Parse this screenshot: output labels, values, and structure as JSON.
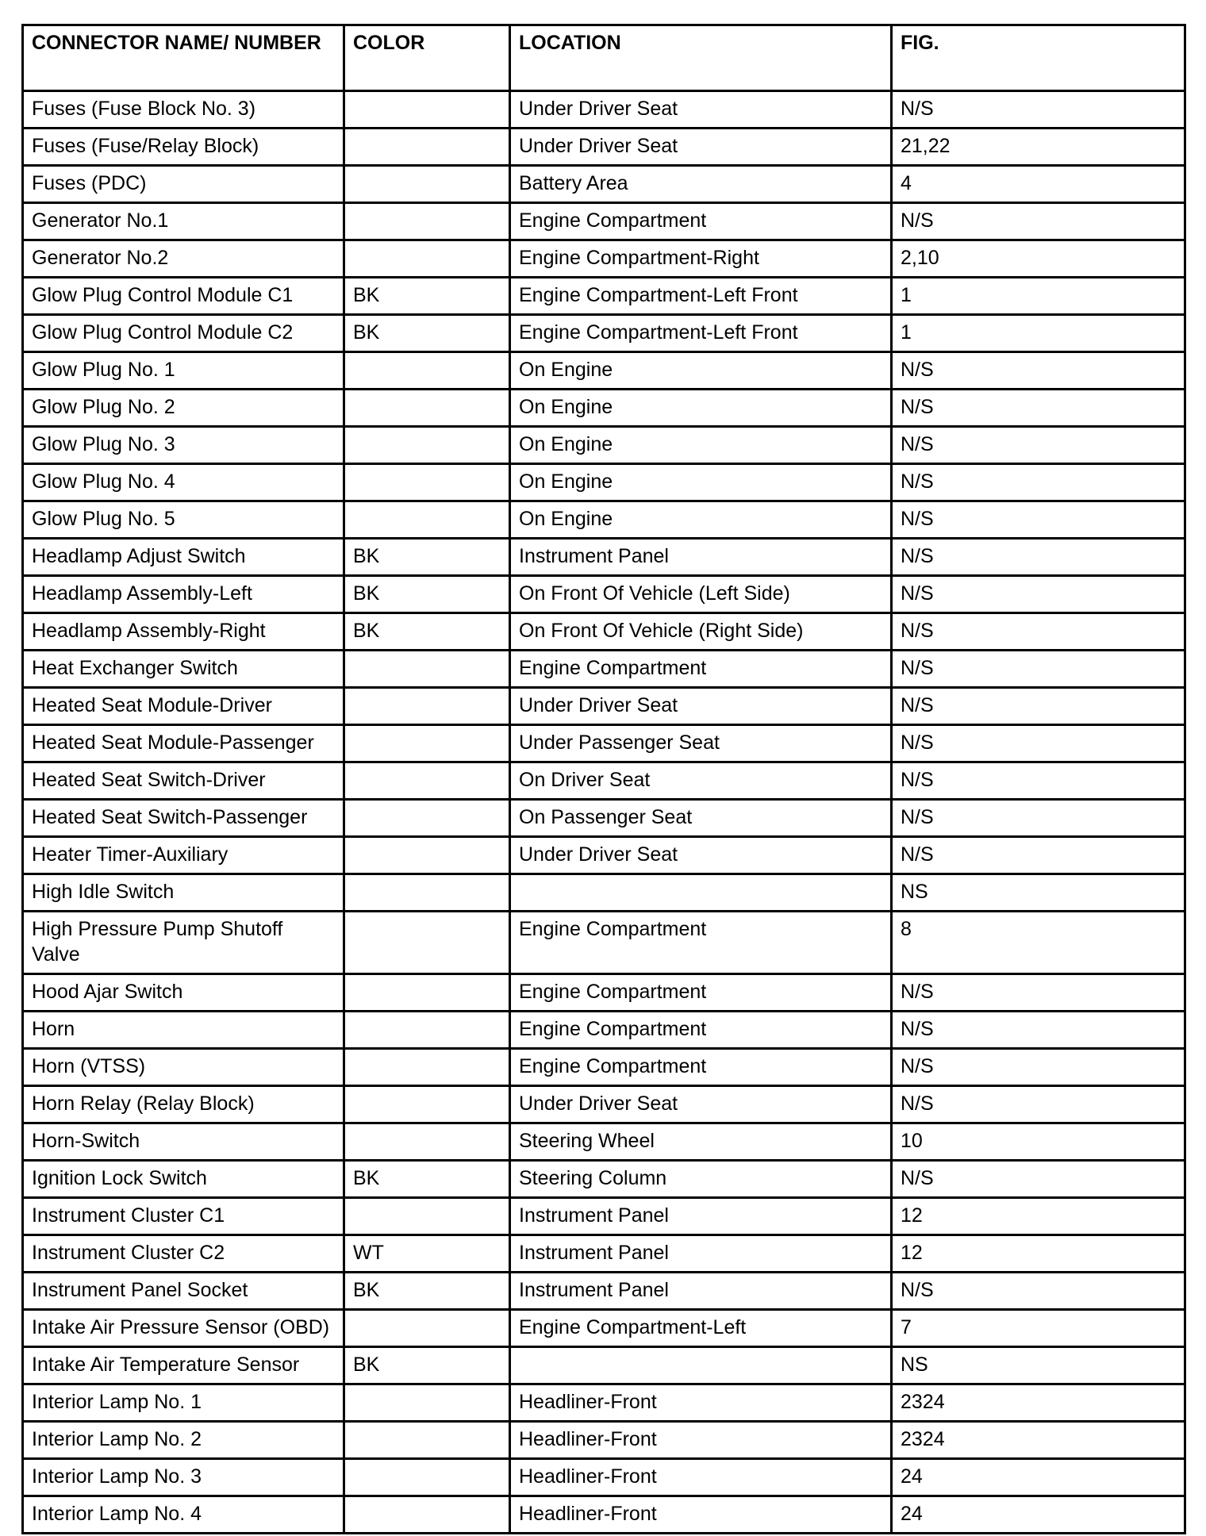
{
  "table": {
    "header": [
      "CONNECTOR NAME/ NUMBER",
      "COLOR",
      "LOCATION",
      "FIG."
    ],
    "rows": [
      [
        "Fuses (Fuse Block No. 3)",
        "",
        "Under Driver Seat",
        "N/S"
      ],
      [
        "Fuses (Fuse/Relay Block)",
        "",
        "Under Driver Seat",
        "21,22"
      ],
      [
        "Fuses (PDC)",
        "",
        "Battery Area",
        "4"
      ],
      [
        "Generator No.1",
        "",
        "Engine Compartment",
        "N/S"
      ],
      [
        "Generator No.2",
        "",
        "Engine Compartment-Right",
        "2,10"
      ],
      [
        "Glow Plug Control Module C1",
        "BK",
        "Engine Compartment-Left Front",
        "1"
      ],
      [
        "Glow Plug Control Module C2",
        "BK",
        "Engine Compartment-Left Front",
        "1"
      ],
      [
        "Glow Plug No. 1",
        "",
        "On Engine",
        "N/S"
      ],
      [
        "Glow Plug No. 2",
        "",
        "On Engine",
        "N/S"
      ],
      [
        "Glow Plug No. 3",
        "",
        "On Engine",
        "N/S"
      ],
      [
        "Glow Plug No. 4",
        "",
        "On Engine",
        "N/S"
      ],
      [
        "Glow Plug No. 5",
        "",
        "On Engine",
        "N/S"
      ],
      [
        "Headlamp Adjust Switch",
        "BK",
        "Instrument Panel",
        "N/S"
      ],
      [
        "Headlamp Assembly-Left",
        "BK",
        "On Front Of Vehicle (Left Side)",
        "N/S"
      ],
      [
        "Headlamp Assembly-Right",
        "BK",
        "On Front Of Vehicle (Right Side)",
        "N/S"
      ],
      [
        "Heat Exchanger Switch",
        "",
        "Engine Compartment",
        "N/S"
      ],
      [
        "Heated Seat Module-Driver",
        "",
        "Under Driver Seat",
        "N/S"
      ],
      [
        "Heated Seat Module-Passenger",
        "",
        "Under Passenger Seat",
        "N/S"
      ],
      [
        "Heated Seat Switch-Driver",
        "",
        "On Driver Seat",
        "N/S"
      ],
      [
        "Heated Seat Switch-Passenger",
        "",
        "On Passenger Seat",
        "N/S"
      ],
      [
        "Heater Timer-Auxiliary",
        "",
        "Under Driver Seat",
        "N/S"
      ],
      [
        "High Idle Switch",
        "",
        "",
        "NS"
      ],
      [
        "High Pressure Pump Shutoff Valve",
        "",
        "Engine Compartment",
        "8"
      ],
      [
        "Hood Ajar Switch",
        "",
        "Engine Compartment",
        "N/S"
      ],
      [
        "Horn",
        "",
        "Engine Compartment",
        "N/S"
      ],
      [
        "Horn (VTSS)",
        "",
        "Engine Compartment",
        "N/S"
      ],
      [
        "Horn Relay (Relay Block)",
        "",
        "Under Driver Seat",
        "N/S"
      ],
      [
        "Horn-Switch",
        "",
        "Steering Wheel",
        "10"
      ],
      [
        "Ignition Lock Switch",
        "BK",
        "Steering Column",
        "N/S"
      ],
      [
        "Instrument Cluster C1",
        "",
        "Instrument Panel",
        "12"
      ],
      [
        "Instrument Cluster C2",
        "WT",
        "Instrument Panel",
        "12"
      ],
      [
        "Instrument Panel Socket",
        "BK",
        "Instrument Panel",
        "N/S"
      ],
      [
        "Intake Air Pressure Sensor (OBD)",
        "",
        "Engine Compartment-Left",
        "7"
      ],
      [
        "Intake Air Temperature Sensor",
        "BK",
        "",
        "NS"
      ],
      [
        "Interior Lamp No. 1",
        "",
        "Headliner-Front",
        "2324"
      ],
      [
        "Interior Lamp No. 2",
        "",
        "Headliner-Front",
        "2324"
      ],
      [
        "Interior Lamp No. 3",
        "",
        "Headliner-Front",
        "24"
      ],
      [
        "Interior Lamp No. 4",
        "",
        "Headliner-Front",
        "24"
      ]
    ]
  }
}
